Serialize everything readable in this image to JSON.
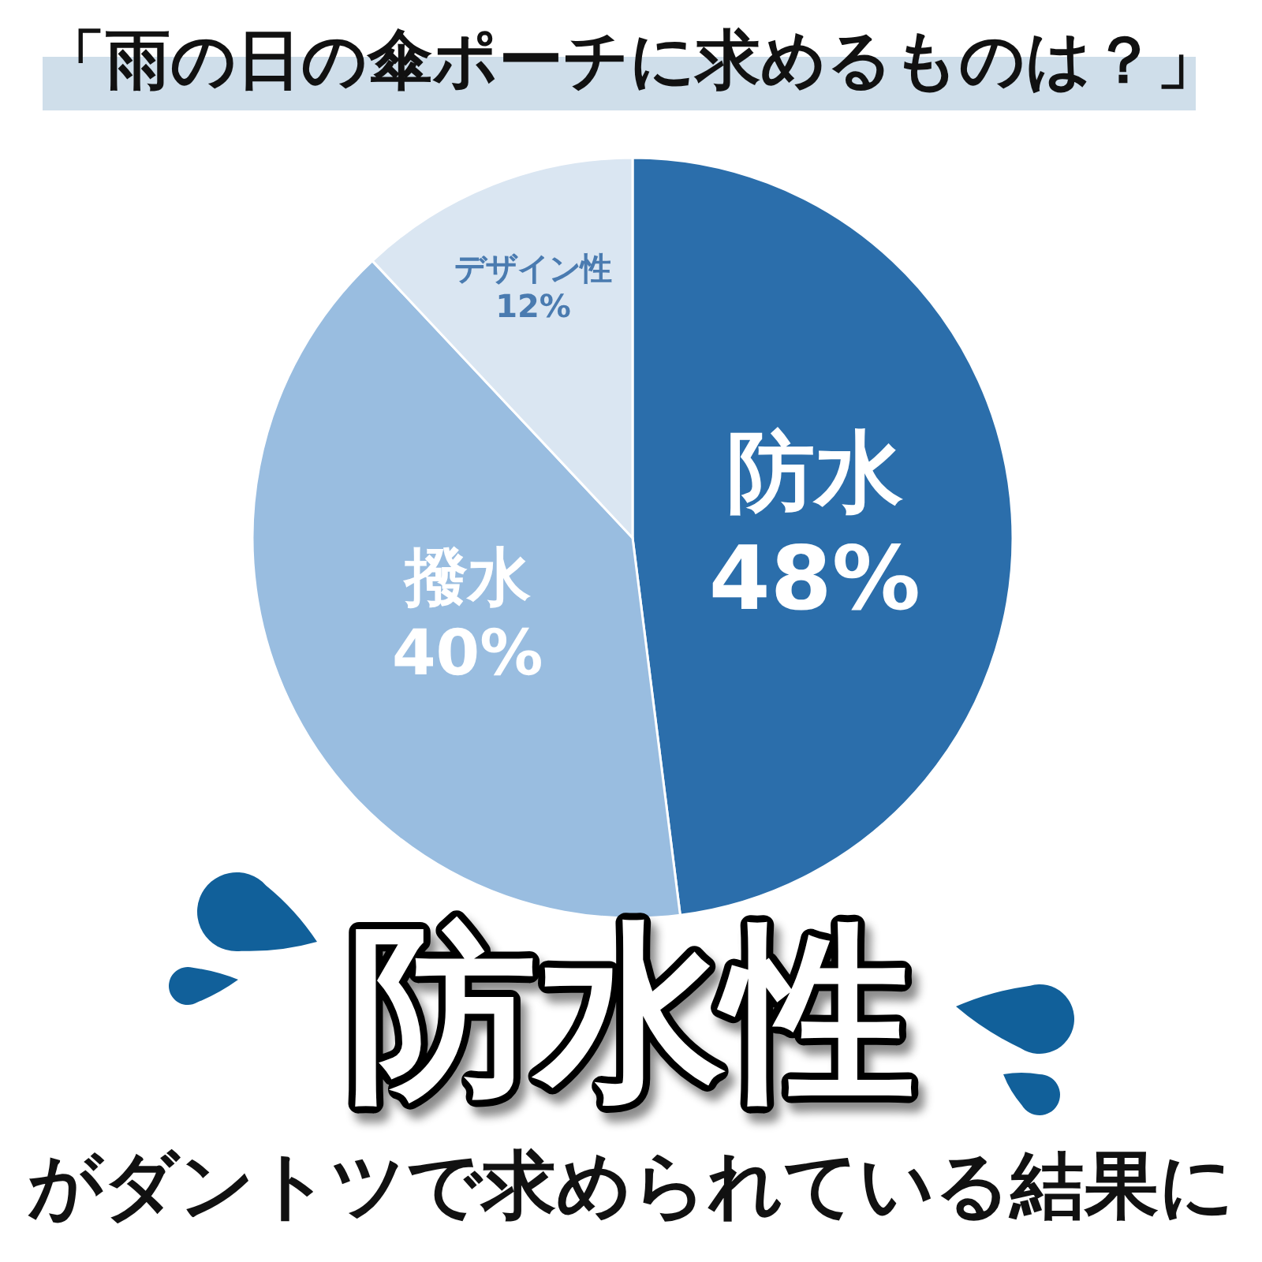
{
  "chart_data": {
    "type": "pie",
    "title": "「雨の日の傘ポーチに求めるものは？」",
    "categories": [
      "防水",
      "撥水",
      "デザイン性"
    ],
    "values": [
      48,
      40,
      12
    ],
    "colors": [
      "#2b6eab",
      "#99bde0",
      "#dae6f2"
    ],
    "value_labels": [
      "48%",
      "40%",
      "12%"
    ],
    "annotations": [
      "防水性",
      "がダントツで求められている結果に"
    ]
  }
}
